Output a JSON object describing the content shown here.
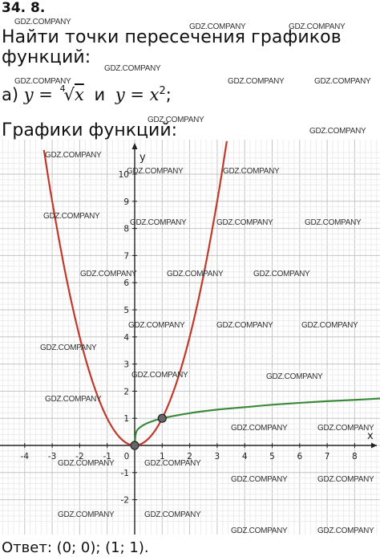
{
  "header": {
    "problem_number": "34. 8.",
    "task": "Найти точки пересечения графиков функций:",
    "subtask_label": "а)",
    "subtask_y1": "y = ",
    "subtask_root_index": "4",
    "subtask_radicand": "x",
    "subtask_and": "и",
    "subtask_y2": "y = x",
    "subtask_exp": "2",
    "subtask_end": ";",
    "graphs_heading": "Графики функций:"
  },
  "answer": {
    "text": "Ответ:  (0; 0);  (1; 1)."
  },
  "watermark": {
    "text": "GDZ.COMPANY"
  },
  "chart_data": {
    "type": "line",
    "title": "",
    "xlabel": "x",
    "ylabel": "y",
    "xlim": [
      -4.9,
      9.1
    ],
    "ylim": [
      -2.9,
      10.9
    ],
    "x_ticks": [
      "-4",
      "-3",
      "-2",
      "-1",
      "0",
      "1",
      "2",
      "3",
      "4",
      "5",
      "6",
      "7",
      "8"
    ],
    "y_ticks": [
      "-2",
      "-1",
      "1",
      "2",
      "3",
      "4",
      "5",
      "6",
      "7",
      "8",
      "9",
      "10"
    ],
    "grid": true,
    "series": [
      {
        "function": "x^2",
        "color": "#c0392b",
        "x": [
          -3.3,
          -3,
          -2.5,
          -2,
          -1.5,
          -1,
          -0.5,
          0,
          0.5,
          1,
          1.5,
          2,
          2.5,
          3,
          3.35
        ],
        "y": [
          10.89,
          9,
          6.25,
          4,
          2.25,
          1,
          0.25,
          0,
          0.25,
          1,
          2.25,
          4,
          6.25,
          9,
          11.22
        ]
      },
      {
        "function": "x^(1/4)",
        "color": "#3a8a3a",
        "x": [
          0,
          0.05,
          0.2,
          0.5,
          1,
          2,
          3,
          4,
          5,
          6,
          7,
          8,
          9.1
        ],
        "y": [
          0,
          0.47,
          0.67,
          0.84,
          1,
          1.19,
          1.32,
          1.41,
          1.5,
          1.57,
          1.63,
          1.68,
          1.74
        ]
      }
    ],
    "points": [
      {
        "x": 0,
        "y": 0
      },
      {
        "x": 1,
        "y": 1
      }
    ]
  }
}
